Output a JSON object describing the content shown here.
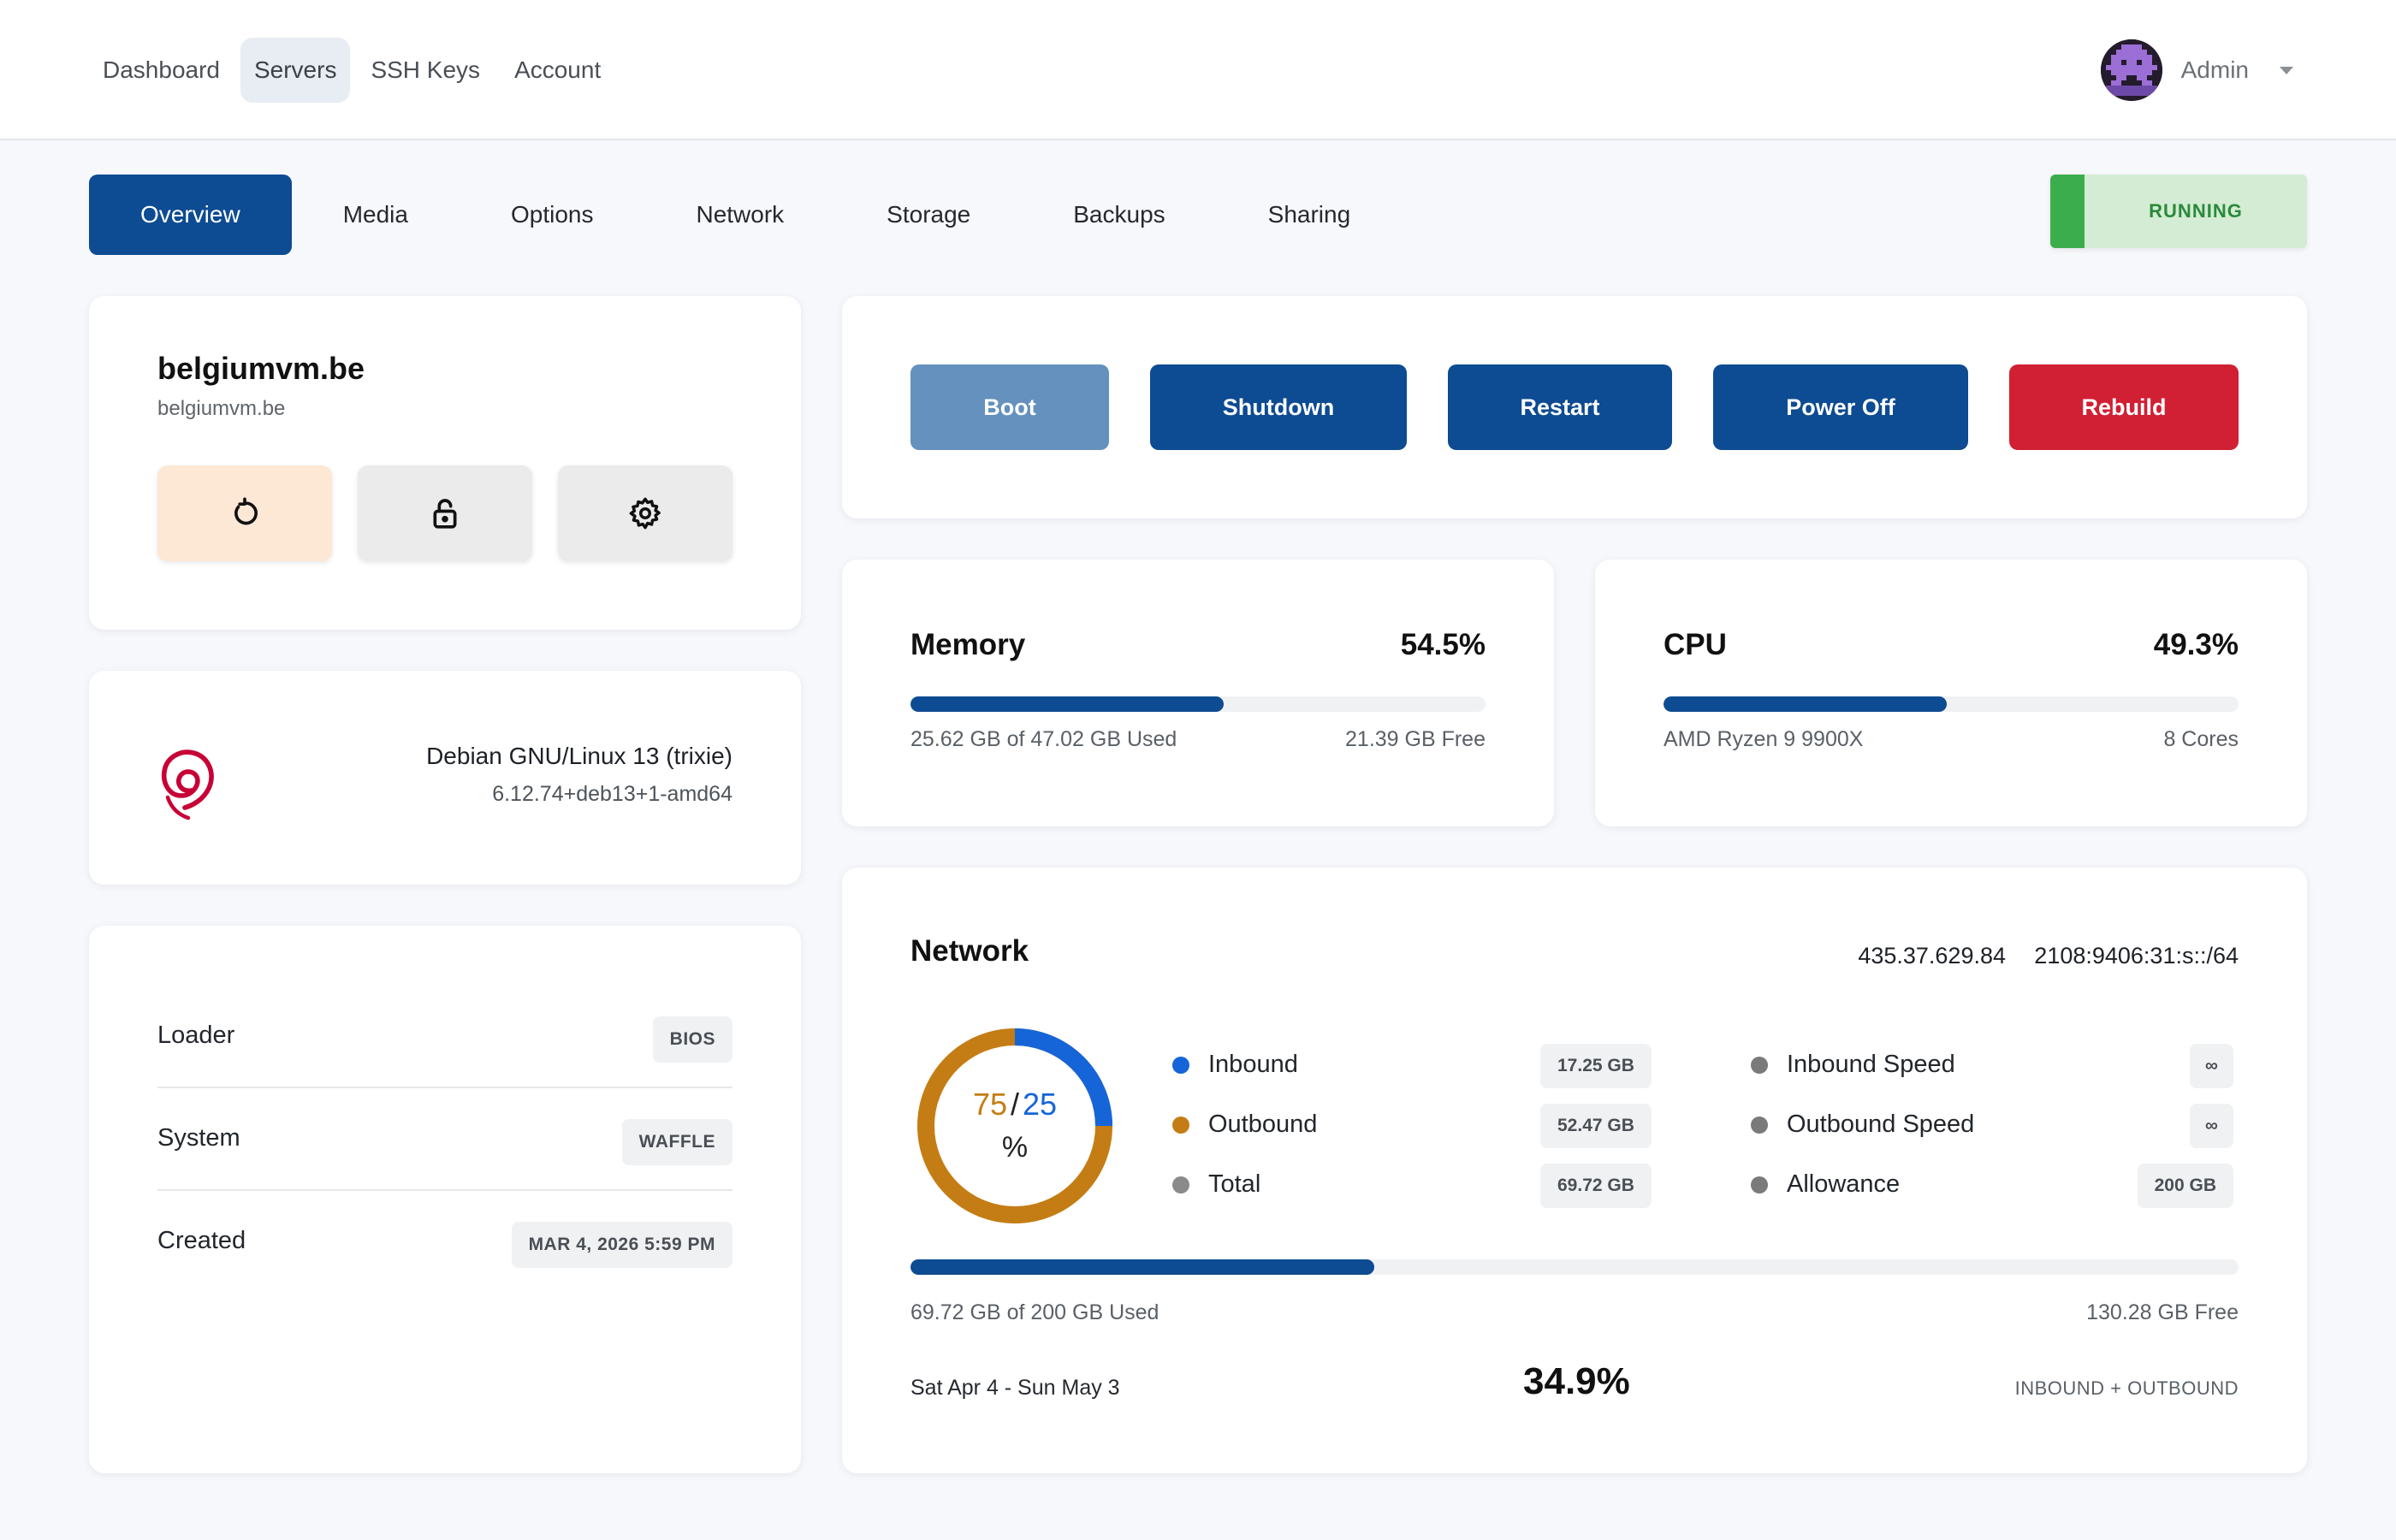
{
  "topnav": {
    "items": [
      "Dashboard",
      "Servers",
      "SSH Keys",
      "Account"
    ],
    "active": "Servers"
  },
  "user": {
    "name": "Admin",
    "avatar_icon": "pixel-avatar-icon"
  },
  "tabs": [
    "Overview",
    "Media",
    "Options",
    "Network",
    "Storage",
    "Backups",
    "Sharing"
  ],
  "status": {
    "label": "RUNNING",
    "color": "#3cad4c"
  },
  "host": {
    "name": "belgiumvm.be",
    "subtitle": "belgiumvm.be",
    "quick_actions": [
      "reinstall-icon",
      "lock-icon",
      "gear-icon"
    ]
  },
  "os": {
    "logo_icon": "debian-swirl-icon",
    "name": "Debian GNU/Linux 13 (trixie)",
    "kernel": "6.12.74+deb13+1-amd64"
  },
  "info": [
    {
      "label": "Loader",
      "value": "BIOS"
    },
    {
      "label": "System",
      "value": "WAFFLE"
    },
    {
      "label": "Created",
      "value": "MAR 4, 2026 5:59 PM"
    }
  ],
  "power": {
    "boot": "Boot",
    "shutdown": "Shutdown",
    "restart": "Restart",
    "poweroff": "Power Off",
    "rebuild": "Rebuild"
  },
  "memory": {
    "title": "Memory",
    "percent_label": "54.5%",
    "percent": 54.5,
    "used_label": "25.62 GB of 47.02 GB Used",
    "free_label": "21.39 GB Free"
  },
  "cpu": {
    "title": "CPU",
    "percent_label": "49.3%",
    "percent": 49.3,
    "model": "AMD Ryzen 9 9900X",
    "cores": "8 Cores"
  },
  "network": {
    "title": "Network",
    "ipv4": "435.37.629.84",
    "ipv6": "2108:9406:31:s::/64",
    "donut": {
      "outbound_pct": 75,
      "inbound_pct": 25,
      "outbound_label": "75",
      "slash": "/",
      "inbound_label": "25",
      "unit": "%"
    },
    "legend_left": [
      {
        "label": "Inbound",
        "value": "17.25 GB",
        "color": "#1565d8"
      },
      {
        "label": "Outbound",
        "value": "52.47 GB",
        "color": "#c47d14"
      },
      {
        "label": "Total",
        "value": "69.72 GB",
        "color": "#8a8a8a"
      }
    ],
    "legend_right": [
      {
        "label": "Inbound Speed",
        "value": "∞",
        "color": "#7a7a7a"
      },
      {
        "label": "Outbound Speed",
        "value": "∞",
        "color": "#7a7a7a"
      },
      {
        "label": "Allowance",
        "value": "200 GB",
        "color": "#7a7a7a"
      }
    ],
    "usage_percent": 34.9,
    "used_label": "69.72 GB of 200 GB Used",
    "free_label": "130.28 GB Free",
    "period": "Sat Apr 4 - Sun May 3",
    "percent_label": "34.9%",
    "note": "INBOUND + OUTBOUND"
  }
}
